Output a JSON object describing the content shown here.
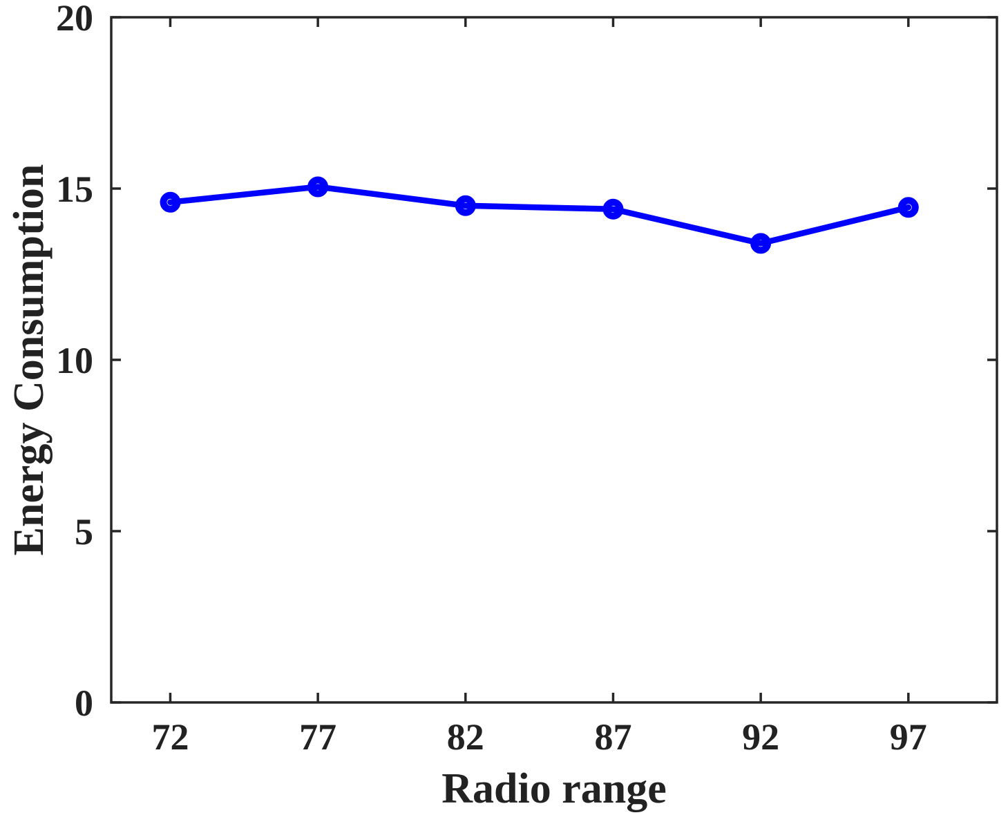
{
  "figure": {
    "background": "#ffffff"
  },
  "chart_data": {
    "type": "line",
    "title": "",
    "xlabel": "Radio range",
    "ylabel": "Energy Consumption",
    "x": [
      72,
      77,
      82,
      87,
      92,
      97
    ],
    "series": [
      {
        "name": "Energy Consumption",
        "values": [
          14.6,
          15.05,
          14.5,
          14.4,
          13.4,
          14.45
        ]
      }
    ],
    "xlim": [
      70,
      100
    ],
    "ylim": [
      0,
      20
    ],
    "xticks": [
      72,
      77,
      82,
      87,
      92,
      97
    ],
    "yticks": [
      0,
      5,
      10,
      15,
      20
    ],
    "grid": false,
    "legend_position": "none",
    "line_color": "#0000FF",
    "marker": "o",
    "marker_fill": "none",
    "axis_color": "#262626",
    "text_color": "#222222",
    "box": true,
    "tick_direction": "in"
  }
}
